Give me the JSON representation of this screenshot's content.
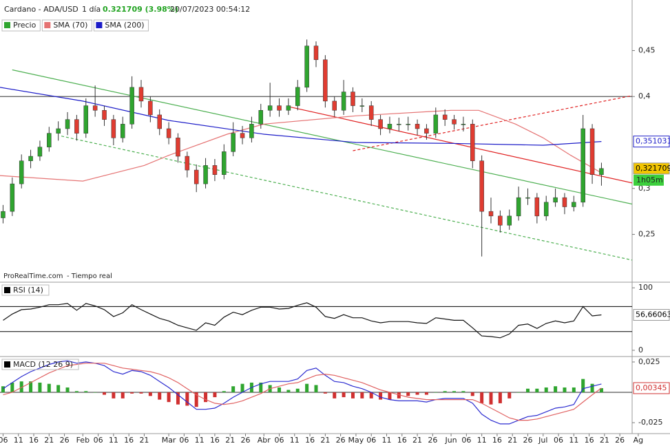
{
  "header": {
    "instrument": "Cardano - ADA/USD",
    "interval": "1 día",
    "last": "0.321709 (3.98%)",
    "timestamp": "20/07/2023 00:54:12"
  },
  "xaxis": {
    "xlim": [
      "2023-01-05",
      "2023-07-30"
    ],
    "xticks": [
      {
        "value": "2023-01-06",
        "label": "06"
      },
      {
        "value": "2023-01-11",
        "label": "11"
      },
      {
        "value": "2023-01-16",
        "label": "16"
      },
      {
        "value": "2023-01-21",
        "label": "21"
      },
      {
        "value": "2023-01-26",
        "label": "26"
      },
      {
        "value": "2023-02-01",
        "label": "Feb"
      },
      {
        "value": "2023-02-06",
        "label": "06"
      },
      {
        "value": "2023-02-11",
        "label": "11"
      },
      {
        "value": "2023-02-16",
        "label": "16"
      },
      {
        "value": "2023-02-21",
        "label": "21"
      },
      {
        "value": "2023-03-01",
        "label": "Mar"
      },
      {
        "value": "2023-03-06",
        "label": "06"
      },
      {
        "value": "2023-03-11",
        "label": "11"
      },
      {
        "value": "2023-03-16",
        "label": "16"
      },
      {
        "value": "2023-03-21",
        "label": "21"
      },
      {
        "value": "2023-03-26",
        "label": "26"
      },
      {
        "value": "2023-04-01",
        "label": "Abr"
      },
      {
        "value": "2023-04-06",
        "label": "06"
      },
      {
        "value": "2023-04-11",
        "label": "11"
      },
      {
        "value": "2023-04-16",
        "label": "16"
      },
      {
        "value": "2023-04-21",
        "label": "21"
      },
      {
        "value": "2023-04-26",
        "label": "26"
      },
      {
        "value": "2023-05-01",
        "label": "May"
      },
      {
        "value": "2023-05-06",
        "label": "06"
      },
      {
        "value": "2023-05-11",
        "label": "11"
      },
      {
        "value": "2023-05-16",
        "label": "16"
      },
      {
        "value": "2023-05-21",
        "label": "21"
      },
      {
        "value": "2023-05-26",
        "label": "26"
      },
      {
        "value": "2023-06-01",
        "label": "Jun"
      },
      {
        "value": "2023-06-06",
        "label": "06"
      },
      {
        "value": "2023-06-11",
        "label": "11"
      },
      {
        "value": "2023-06-16",
        "label": "16"
      },
      {
        "value": "2023-06-21",
        "label": "21"
      },
      {
        "value": "2023-06-26",
        "label": "26"
      },
      {
        "value": "2023-07-01",
        "label": "Jul"
      },
      {
        "value": "2023-07-06",
        "label": "06"
      },
      {
        "value": "2023-07-11",
        "label": "11"
      },
      {
        "value": "2023-07-16",
        "label": "16"
      },
      {
        "value": "2023-07-21",
        "label": "21"
      },
      {
        "value": "2023-07-26",
        "label": "26"
      },
      {
        "value": "2023-08-01",
        "label": "Ag"
      }
    ]
  },
  "chart_data": [
    {
      "type": "candlestick",
      "name": "Precio",
      "color": "#2fa52f",
      "down_color": "#e03c31",
      "ylim": [
        0.198,
        0.505
      ],
      "yticks": [
        {
          "value": 0.45,
          "label": "0,45"
        },
        {
          "value": 0.4,
          "label": "0,4"
        },
        {
          "value": 0.3,
          "label": "0,3"
        },
        {
          "value": 0.25,
          "label": "0,25"
        }
      ],
      "x": [
        "2023-01-06",
        "2023-01-09",
        "2023-01-12",
        "2023-01-15",
        "2023-01-18",
        "2023-01-21",
        "2023-01-24",
        "2023-01-27",
        "2023-01-30",
        "2023-02-02",
        "2023-02-05",
        "2023-02-08",
        "2023-02-11",
        "2023-02-14",
        "2023-02-17",
        "2023-02-20",
        "2023-02-23",
        "2023-02-26",
        "2023-03-01",
        "2023-03-04",
        "2023-03-07",
        "2023-03-10",
        "2023-03-13",
        "2023-03-16",
        "2023-03-19",
        "2023-03-22",
        "2023-03-25",
        "2023-03-28",
        "2023-03-31",
        "2023-04-03",
        "2023-04-06",
        "2023-04-09",
        "2023-04-12",
        "2023-04-15",
        "2023-04-18",
        "2023-04-21",
        "2023-04-24",
        "2023-04-27",
        "2023-04-30",
        "2023-05-03",
        "2023-05-06",
        "2023-05-09",
        "2023-05-12",
        "2023-05-15",
        "2023-05-18",
        "2023-05-21",
        "2023-05-24",
        "2023-05-27",
        "2023-05-30",
        "2023-06-02",
        "2023-06-05",
        "2023-06-08",
        "2023-06-11",
        "2023-06-14",
        "2023-06-17",
        "2023-06-20",
        "2023-06-23",
        "2023-06-26",
        "2023-06-29",
        "2023-07-02",
        "2023-07-05",
        "2023-07-08",
        "2023-07-11",
        "2023-07-14",
        "2023-07-17",
        "2023-07-20"
      ],
      "candles": [
        [
          0.268,
          0.282,
          0.262,
          0.275
        ],
        [
          0.275,
          0.312,
          0.27,
          0.305
        ],
        [
          0.305,
          0.337,
          0.3,
          0.33
        ],
        [
          0.33,
          0.342,
          0.322,
          0.335
        ],
        [
          0.335,
          0.352,
          0.33,
          0.345
        ],
        [
          0.345,
          0.367,
          0.34,
          0.36
        ],
        [
          0.36,
          0.373,
          0.352,
          0.365
        ],
        [
          0.365,
          0.383,
          0.358,
          0.375
        ],
        [
          0.375,
          0.38,
          0.352,
          0.36
        ],
        [
          0.36,
          0.398,
          0.355,
          0.39
        ],
        [
          0.39,
          0.412,
          0.378,
          0.385
        ],
        [
          0.385,
          0.39,
          0.368,
          0.375
        ],
        [
          0.375,
          0.38,
          0.347,
          0.355
        ],
        [
          0.355,
          0.378,
          0.35,
          0.37
        ],
        [
          0.37,
          0.422,
          0.365,
          0.41
        ],
        [
          0.41,
          0.418,
          0.388,
          0.395
        ],
        [
          0.395,
          0.4,
          0.372,
          0.38
        ],
        [
          0.38,
          0.386,
          0.358,
          0.365
        ],
        [
          0.365,
          0.372,
          0.348,
          0.355
        ],
        [
          0.355,
          0.36,
          0.328,
          0.335
        ],
        [
          0.335,
          0.34,
          0.312,
          0.32
        ],
        [
          0.32,
          0.326,
          0.296,
          0.305
        ],
        [
          0.305,
          0.333,
          0.3,
          0.325
        ],
        [
          0.325,
          0.332,
          0.308,
          0.315
        ],
        [
          0.315,
          0.348,
          0.31,
          0.34
        ],
        [
          0.34,
          0.372,
          0.335,
          0.36
        ],
        [
          0.36,
          0.368,
          0.348,
          0.355
        ],
        [
          0.355,
          0.378,
          0.35,
          0.37
        ],
        [
          0.37,
          0.392,
          0.365,
          0.385
        ],
        [
          0.385,
          0.415,
          0.378,
          0.39
        ],
        [
          0.39,
          0.398,
          0.378,
          0.385
        ],
        [
          0.385,
          0.398,
          0.38,
          0.39
        ],
        [
          0.39,
          0.418,
          0.385,
          0.41
        ],
        [
          0.41,
          0.462,
          0.405,
          0.455
        ],
        [
          0.455,
          0.46,
          0.432,
          0.44
        ],
        [
          0.44,
          0.445,
          0.388,
          0.395
        ],
        [
          0.395,
          0.4,
          0.378,
          0.385
        ],
        [
          0.385,
          0.418,
          0.38,
          0.405
        ],
        [
          0.405,
          0.41,
          0.383,
          0.39
        ],
        [
          0.39,
          0.398,
          0.383,
          0.39
        ],
        [
          0.39,
          0.395,
          0.368,
          0.375
        ],
        [
          0.375,
          0.38,
          0.358,
          0.365
        ],
        [
          0.365,
          0.378,
          0.36,
          0.37
        ],
        [
          0.37,
          0.377,
          0.362,
          0.37
        ],
        [
          0.37,
          0.378,
          0.363,
          0.37
        ],
        [
          0.37,
          0.375,
          0.358,
          0.365
        ],
        [
          0.365,
          0.37,
          0.353,
          0.36
        ],
        [
          0.36,
          0.388,
          0.355,
          0.38
        ],
        [
          0.38,
          0.386,
          0.368,
          0.375
        ],
        [
          0.375,
          0.38,
          0.364,
          0.37
        ],
        [
          0.37,
          0.378,
          0.362,
          0.37
        ],
        [
          0.37,
          0.375,
          0.322,
          0.33
        ],
        [
          0.33,
          0.336,
          0.226,
          0.275
        ],
        [
          0.275,
          0.29,
          0.262,
          0.27
        ],
        [
          0.27,
          0.276,
          0.252,
          0.26
        ],
        [
          0.26,
          0.277,
          0.255,
          0.27
        ],
        [
          0.27,
          0.302,
          0.265,
          0.29
        ],
        [
          0.29,
          0.3,
          0.282,
          0.29
        ],
        [
          0.29,
          0.295,
          0.262,
          0.27
        ],
        [
          0.27,
          0.292,
          0.265,
          0.285
        ],
        [
          0.285,
          0.3,
          0.28,
          0.29
        ],
        [
          0.29,
          0.295,
          0.272,
          0.28
        ],
        [
          0.28,
          0.292,
          0.275,
          0.285
        ],
        [
          0.285,
          0.38,
          0.28,
          0.365
        ],
        [
          0.365,
          0.37,
          0.305,
          0.315
        ],
        [
          0.315,
          0.328,
          0.303,
          0.321709
        ]
      ],
      "series": [
        {
          "name": "SMA (70)",
          "color": "#e57373",
          "x": [
            "2023-01-05",
            "2023-02-01",
            "2023-02-21",
            "2023-03-01",
            "2023-03-20",
            "2023-04-01",
            "2023-05-01",
            "2023-06-01",
            "2023-06-10",
            "2023-06-22",
            "2023-07-01",
            "2023-07-10",
            "2023-07-20"
          ],
          "values": [
            0.314,
            0.308,
            0.325,
            0.336,
            0.359,
            0.37,
            0.379,
            0.385,
            0.385,
            0.37,
            0.355,
            0.336,
            0.317
          ]
        },
        {
          "name": "SMA (200)",
          "color": "#1c1cc8",
          "x": [
            "2023-01-05",
            "2023-02-01",
            "2023-03-01",
            "2023-04-01",
            "2023-05-01",
            "2023-06-01",
            "2023-07-01",
            "2023-07-20"
          ],
          "values": [
            0.41,
            0.395,
            0.374,
            0.359,
            0.35,
            0.349,
            0.347,
            0.351031
          ]
        }
      ],
      "trendlines": [
        {
          "color": "#4caf50",
          "dashed": false,
          "x": [
            "2023-01-09",
            "2023-07-30"
          ],
          "values": [
            0.429,
            0.283
          ]
        },
        {
          "color": "#4caf50",
          "dashed": true,
          "x": [
            "2023-01-25",
            "2023-07-30"
          ],
          "values": [
            0.357,
            0.222
          ]
        },
        {
          "color": "#e02020",
          "dashed": false,
          "x": [
            "2023-04-09",
            "2023-07-30"
          ],
          "values": [
            0.389,
            0.306
          ]
        },
        {
          "color": "#e02020",
          "dashed": true,
          "x": [
            "2023-04-30",
            "2023-07-30"
          ],
          "values": [
            0.341,
            0.401
          ]
        }
      ],
      "hlines": [
        0.4
      ],
      "price_labels": [
        {
          "value": 0.351031,
          "label": "0,351031",
          "color": "#1c1cc8",
          "bg": "#ffffff"
        },
        {
          "value": 0.321709,
          "label": "0,321709",
          "color": "#000000",
          "bg": "#f2c500"
        }
      ],
      "countdown": "1h05m",
      "watermark": "ProRealTime.com",
      "watermark_note": "- Tiempo real"
    },
    {
      "type": "line",
      "title": "RSI (14)",
      "ylim": [
        -10,
        109
      ],
      "yticks": [
        100,
        0
      ],
      "levels": [
        70,
        30
      ],
      "series": [
        {
          "color": "#111111",
          "values": [
            48,
            58,
            65,
            66,
            69,
            73,
            73,
            75,
            64,
            75,
            71,
            65,
            54,
            60,
            73,
            65,
            58,
            51,
            47,
            40,
            36,
            32,
            44,
            40,
            53,
            61,
            57,
            64,
            69,
            69,
            66,
            67,
            72,
            76,
            69,
            54,
            51,
            57,
            52,
            52,
            47,
            44,
            46,
            46,
            46,
            44,
            43,
            52,
            50,
            48,
            48,
            36,
            23,
            22,
            20,
            26,
            40,
            42,
            35,
            43,
            47,
            44,
            47,
            70,
            55,
            56.66063
          ]
        }
      ],
      "price_labels": [
        {
          "value": 56.66063,
          "label": "56,66063",
          "color": "#000000",
          "bg": "#ffffff"
        }
      ]
    },
    {
      "type": "bar",
      "title": "MACD (12 26 9)",
      "ylim": [
        -0.034,
        0.0295
      ],
      "yticks": [
        {
          "value": 0.025,
          "label": "0,025"
        },
        {
          "value": -0.025,
          "label": "-0,025"
        }
      ],
      "hlines": [
        0
      ],
      "color": "#2fa52f",
      "down_color": "#d03030",
      "values": [
        0.005,
        0.008,
        0.009,
        0.009,
        0.008,
        0.007,
        0.006,
        0.004,
        0.001,
        0.001,
        0,
        -0.002,
        -0.005,
        -0.005,
        -0.001,
        -0.001,
        -0.003,
        -0.006,
        -0.008,
        -0.01,
        -0.011,
        -0.012,
        -0.008,
        -0.004,
        0.001,
        0.005,
        0.007,
        0.008,
        0.008,
        0.006,
        0.004,
        0.002,
        0.003,
        0.007,
        0.006,
        -0.001,
        -0.005,
        -0.004,
        -0.005,
        -0.005,
        -0.005,
        -0.006,
        -0.006,
        -0.005,
        -0.003,
        -0.002,
        -0.002,
        0,
        0.001,
        0.001,
        0.001,
        -0.003,
        -0.009,
        -0.01,
        -0.009,
        -0.005,
        0,
        0.003,
        0.003,
        0.004,
        0.005,
        0.004,
        0.004,
        0.011,
        0.007,
        0.00345
      ],
      "series": [
        {
          "color": "#2b2bd0",
          "values": [
            0.003,
            0.008,
            0.013,
            0.017,
            0.02,
            0.023,
            0.025,
            0.026,
            0.024,
            0.025,
            0.024,
            0.022,
            0.017,
            0.015,
            0.018,
            0.017,
            0.014,
            0.009,
            0.004,
            -0.002,
            -0.008,
            -0.014,
            -0.014,
            -0.013,
            -0.009,
            -0.004,
            0,
            0.004,
            0.007,
            0.009,
            0.009,
            0.009,
            0.011,
            0.018,
            0.02,
            0.014,
            0.009,
            0.008,
            0.005,
            0.003,
            0,
            -0.004,
            -0.006,
            -0.007,
            -0.007,
            -0.007,
            -0.008,
            -0.006,
            -0.005,
            -0.005,
            -0.005,
            -0.009,
            -0.018,
            -0.023,
            -0.026,
            -0.026,
            -0.023,
            -0.02,
            -0.019,
            -0.016,
            -0.013,
            -0.012,
            -0.01,
            0.003,
            0.005,
            0.0069
          ]
        },
        {
          "color": "#e06060",
          "values": [
            -0.002,
            0,
            0.004,
            0.008,
            0.012,
            0.016,
            0.019,
            0.022,
            0.023,
            0.024,
            0.024,
            0.024,
            0.022,
            0.02,
            0.019,
            0.018,
            0.017,
            0.015,
            0.012,
            0.008,
            0.003,
            -0.002,
            -0.006,
            -0.009,
            -0.01,
            -0.009,
            -0.007,
            -0.004,
            -0.001,
            0.003,
            0.005,
            0.007,
            0.008,
            0.011,
            0.014,
            0.015,
            0.014,
            0.012,
            0.01,
            0.008,
            0.005,
            0.002,
            0,
            -0.002,
            -0.004,
            -0.005,
            -0.006,
            -0.006,
            -0.006,
            -0.006,
            -0.006,
            -0.006,
            -0.009,
            -0.013,
            -0.017,
            -0.021,
            -0.023,
            -0.023,
            -0.022,
            -0.02,
            -0.018,
            -0.016,
            -0.014,
            -0.008,
            -0.002,
            0.00345
          ]
        }
      ],
      "price_labels": [
        {
          "value": 0.00345,
          "label": "0,00345",
          "color": "#d03030",
          "bg": "#ffffff"
        }
      ]
    }
  ]
}
